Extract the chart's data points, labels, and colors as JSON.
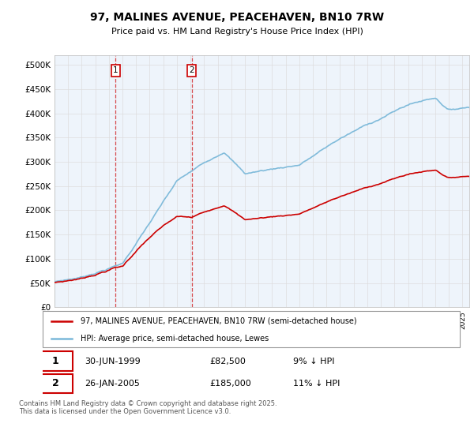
{
  "title": "97, MALINES AVENUE, PEACEHAVEN, BN10 7RW",
  "subtitle": "Price paid vs. HM Land Registry's House Price Index (HPI)",
  "legend_line1": "97, MALINES AVENUE, PEACEHAVEN, BN10 7RW (semi-detached house)",
  "legend_line2": "HPI: Average price, semi-detached house, Lewes",
  "sale1_date": "30-JUN-1999",
  "sale1_price": "£82,500",
  "sale1_hpi": "9% ↓ HPI",
  "sale2_date": "26-JAN-2005",
  "sale2_price": "£185,000",
  "sale2_hpi": "11% ↓ HPI",
  "footer": "Contains HM Land Registry data © Crown copyright and database right 2025.\nThis data is licensed under the Open Government Licence v3.0.",
  "red_color": "#cc0000",
  "blue_color": "#7ab8d9",
  "grid_color": "#dddddd",
  "vline_color": "#cc0000",
  "yticks": [
    0,
    50000,
    100000,
    150000,
    200000,
    250000,
    300000,
    350000,
    400000,
    450000,
    500000
  ],
  "ylabels": [
    "£0",
    "£50K",
    "£100K",
    "£150K",
    "£200K",
    "£250K",
    "£300K",
    "£350K",
    "£400K",
    "£450K",
    "£500K"
  ],
  "sale1_year": 1999.5,
  "sale2_year": 2005.08,
  "sale1_value": 82500,
  "sale2_value": 185000
}
